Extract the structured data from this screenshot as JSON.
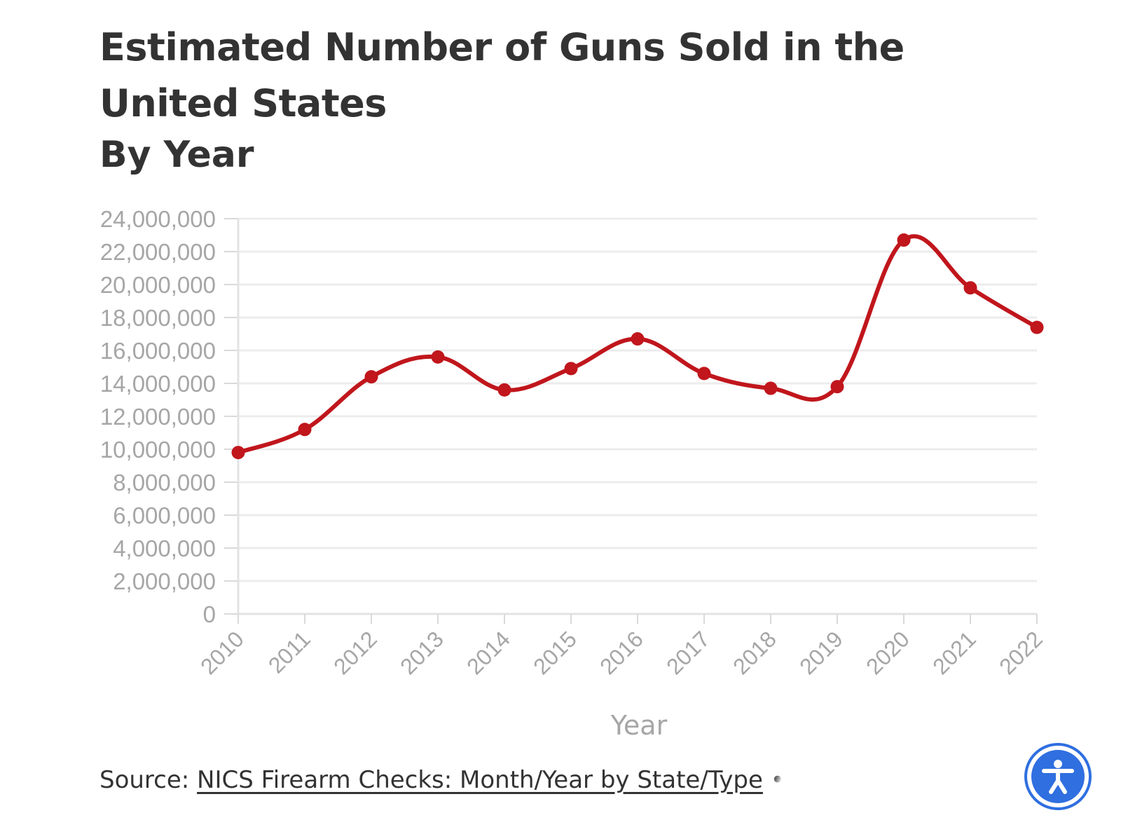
{
  "header": {
    "title": "Estimated Number of Guns Sold in the United States",
    "subtitle": "By Year"
  },
  "footer": {
    "source_prefix": "Source: ",
    "source_link": "NICS Firearm Checks: Month/Year by State/Type",
    "separator": " •"
  },
  "accessibility_button": {
    "icon": "accessibility-icon",
    "color": "#2f6fe0"
  },
  "chart_data": {
    "type": "line",
    "title": "Estimated Number of Guns Sold in the United States",
    "subtitle": "By Year",
    "xlabel": "Year",
    "ylabel": "",
    "x": [
      "2010",
      "2011",
      "2012",
      "2013",
      "2014",
      "2015",
      "2016",
      "2017",
      "2018",
      "2019",
      "2020",
      "2021",
      "2022"
    ],
    "series": [
      {
        "values": [
          9800000,
          11200000,
          14400000,
          15600000,
          13600000,
          14900000,
          16700000,
          14600000,
          13700000,
          13800000,
          22700000,
          19800000,
          17400000
        ],
        "color": "#c0161c"
      }
    ],
    "ylim": [
      0,
      24000000
    ],
    "yticks": [
      0,
      2000000,
      4000000,
      6000000,
      8000000,
      10000000,
      12000000,
      14000000,
      16000000,
      18000000,
      20000000,
      22000000,
      24000000
    ],
    "ytick_labels": [
      "0",
      "2,000,000",
      "4,000,000",
      "6,000,000",
      "8,000,000",
      "10,000,000",
      "12,000,000",
      "14,000,000",
      "16,000,000",
      "18,000,000",
      "20,000,000",
      "22,000,000",
      "24,000,000"
    ],
    "grid": true,
    "legend": "none",
    "grid_color": "#ececec",
    "axis_text_color": "#a6a6a6"
  }
}
